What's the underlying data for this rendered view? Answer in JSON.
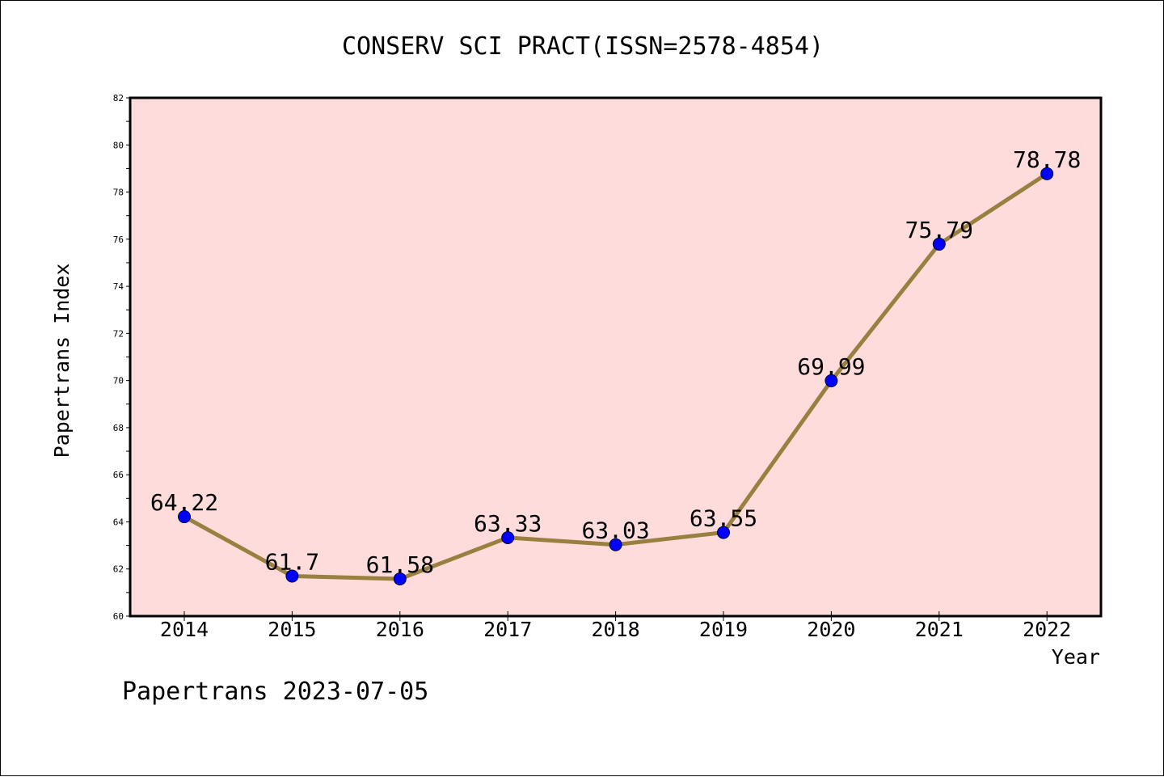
{
  "chart_data": {
    "type": "line",
    "title": "CONSERV SCI PRACT(ISSN=2578-4854)",
    "xlabel": "Year",
    "ylabel": "Papertrans Index",
    "categories": [
      "2014",
      "2015",
      "2016",
      "2017",
      "2018",
      "2019",
      "2020",
      "2021",
      "2022"
    ],
    "values": [
      64.22,
      61.7,
      61.58,
      63.33,
      63.03,
      63.55,
      69.99,
      75.79,
      78.78
    ],
    "data_labels": [
      "64.22",
      "61.7",
      "61.58",
      "63.33",
      "63.03",
      "63.55",
      "69.99",
      "75.79",
      "78.78"
    ],
    "ylim": [
      60,
      82
    ],
    "yticks": [
      60,
      62,
      64,
      66,
      68,
      70,
      72,
      74,
      76,
      78,
      80,
      82
    ],
    "grid": false,
    "colors": {
      "plot_background": "#ffdcdc",
      "line": "#9a8040",
      "marker": "#0000ff"
    }
  },
  "footer": "Papertrans 2023-07-05"
}
